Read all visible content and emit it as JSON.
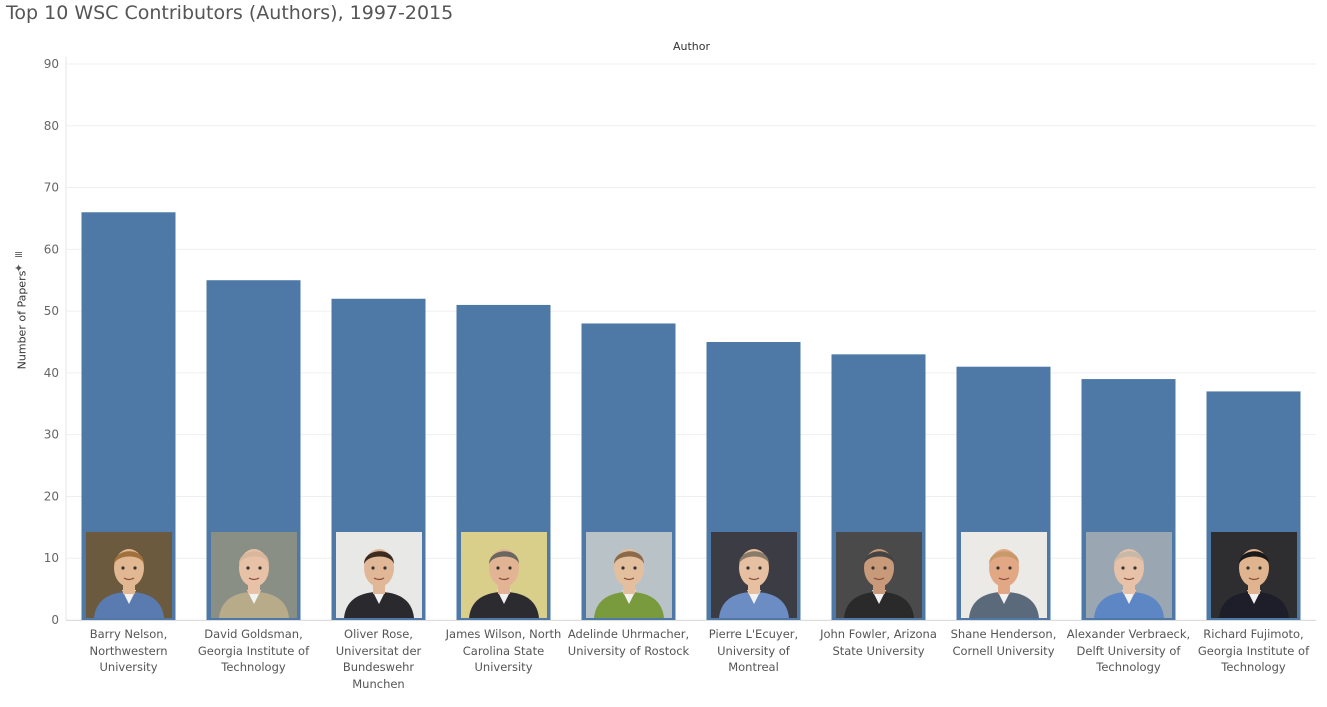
{
  "title": "Top 10 WSC Contributors (Authors), 1997-2015",
  "chart_data": {
    "type": "bar",
    "title": "Top 10 WSC Contributors (Authors), 1997-2015",
    "xlabel": "Author",
    "ylabel": "Number of Papers",
    "ylim": [
      0,
      90
    ],
    "yticks": [
      0,
      10,
      20,
      30,
      40,
      50,
      60,
      70,
      80,
      90
    ],
    "grid": true,
    "bar_color": "#4e79a7",
    "categories": [
      "Barry Nelson, Northwestern University",
      "David Goldsman, Georgia Institute of Technology",
      "Oliver Rose, Universitat der Bundeswehr Munchen",
      "James Wilson, North Carolina State University",
      "Adelinde Uhrmacher, University of Rostock",
      "Pierre L'Ecuyer, University of Montreal",
      "John Fowler, Arizona State University",
      "Shane Henderson, Cornell University",
      "Alexander Verbraeck, Delft University of Technology",
      "Richard Fujimoto, Georgia Institute of Technology"
    ],
    "labels_display": [
      [
        "Barry Nelson,",
        "Northwestern",
        "University"
      ],
      [
        "David Goldsman,",
        "Georgia Institute of",
        "Technology"
      ],
      [
        "Oliver Rose,",
        "Universitat der",
        "Bundeswehr",
        "Munchen"
      ],
      [
        "James Wilson, North",
        "Carolina State",
        "University"
      ],
      [
        "Adelinde Uhrmacher,",
        "University of Rostock"
      ],
      [
        "Pierre L'Ecuyer,",
        "University of",
        "Montreal"
      ],
      [
        "John Fowler, Arizona",
        "State University"
      ],
      [
        "Shane Henderson,",
        "Cornell University"
      ],
      [
        "Alexander Verbraeck,",
        "Delft University of",
        "Technology"
      ],
      [
        "Richard Fujimoto,",
        "Georgia Institute of",
        "Technology"
      ]
    ],
    "values": [
      66,
      55,
      52,
      51,
      48,
      45,
      43,
      41,
      39,
      37
    ]
  },
  "photos": [
    {
      "bg": "#6b5a3e",
      "face": "#e2b893",
      "hair": "#a0713a",
      "shirt": "#5a7bb0"
    },
    {
      "bg": "#8a8f86",
      "face": "#e8c2a6",
      "hair": "#d9b79c",
      "shirt": "#b8ab8a"
    },
    {
      "bg": "#e8e8e6",
      "face": "#e0b898",
      "hair": "#3a2a20",
      "shirt": "#2a2a2e"
    },
    {
      "bg": "#d9cf8a",
      "face": "#e3b494",
      "hair": "#6a6660",
      "shirt": "#2b2b30"
    },
    {
      "bg": "#b9c2c6",
      "face": "#e3bf9e",
      "hair": "#8a6a4a",
      "shirt": "#7a9a3e"
    },
    {
      "bg": "#3c3c44",
      "face": "#e6c0a0",
      "hair": "#8a7a6a",
      "shirt": "#6c8cc4"
    },
    {
      "bg": "#4a4a4a",
      "face": "#c89a7a",
      "hair": "#444444",
      "shirt": "#2a2a2a"
    },
    {
      "bg": "#eceae6",
      "face": "#e2a886",
      "hair": "#c89a6a",
      "shirt": "#5a6a7a"
    },
    {
      "bg": "#9aa6b2",
      "face": "#e8c2a8",
      "hair": "#c8b8a8",
      "shirt": "#5c86c4"
    },
    {
      "bg": "#2e2e30",
      "face": "#e0b48e",
      "hair": "#1a1a1a",
      "shirt": "#1e1e2a"
    }
  ]
}
